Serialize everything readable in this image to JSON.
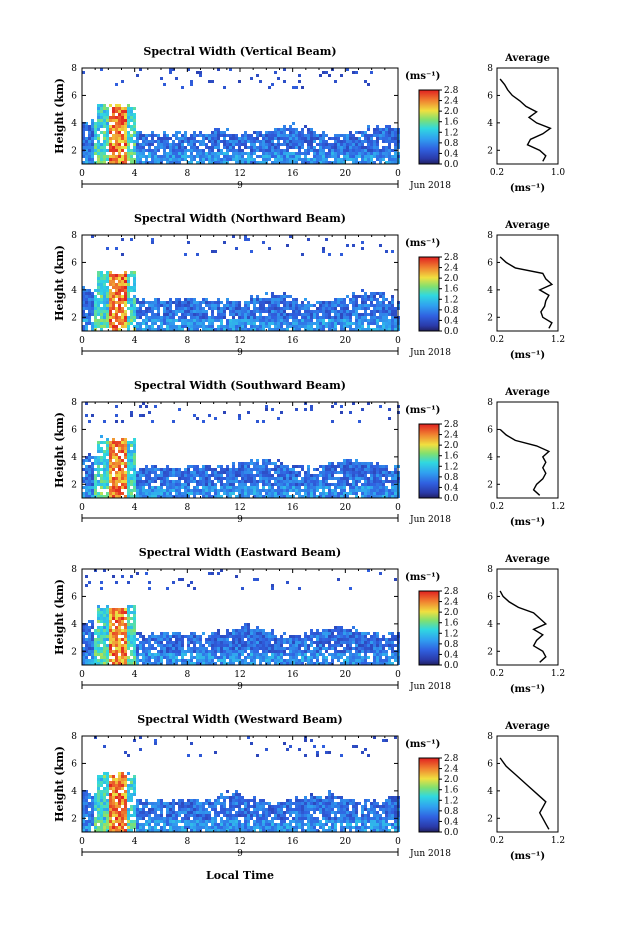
{
  "figure": {
    "xlabel": "Local Time",
    "date_label": "Jun 2018",
    "day_label": "9",
    "unit_label": "(ms⁻¹)",
    "avg_title": "Average"
  },
  "chart_data": [
    {
      "type": "heatmap",
      "title": "Spectral Width (Vertical Beam)",
      "ylabel": "Height (km)",
      "xlabel": "Local Time",
      "x_ticks": [
        "0",
        "4",
        "8",
        "12",
        "16",
        "20",
        "0"
      ],
      "y_ticks": [
        "2",
        "4",
        "6",
        "8"
      ],
      "xlim": [
        0,
        24
      ],
      "ylim": [
        1,
        8
      ],
      "colorbar": {
        "label": "(ms⁻¹)",
        "ticks": [
          "0.0",
          "0.4",
          "0.8",
          "1.2",
          "1.6",
          "2.0",
          "2.4",
          "2.8"
        ],
        "range": [
          0,
          2.8
        ]
      },
      "average_profile": {
        "title": "Average",
        "xlabel": "(ms⁻¹)",
        "x_ticks": [
          "0.2",
          "1.0"
        ],
        "xlim": [
          0.2,
          1.0
        ],
        "y_ticks": [
          "2",
          "4",
          "6",
          "8"
        ],
        "ylim": [
          1,
          8
        ],
        "x": [
          0.8,
          0.84,
          0.76,
          0.6,
          0.64,
          0.8,
          0.9,
          0.72,
          0.62,
          0.72,
          0.58,
          0.5,
          0.4,
          0.34,
          0.3,
          0.24
        ],
        "y": [
          1.2,
          1.6,
          2.0,
          2.4,
          2.8,
          3.2,
          3.6,
          4.0,
          4.4,
          4.8,
          5.2,
          5.6,
          6.0,
          6.4,
          6.8,
          7.2
        ]
      }
    },
    {
      "type": "heatmap",
      "title": "Spectral Width (Northward Beam)",
      "ylabel": "Height (km)",
      "x_ticks": [
        "0",
        "4",
        "8",
        "12",
        "16",
        "20",
        "0"
      ],
      "y_ticks": [
        "2",
        "4",
        "6",
        "8"
      ],
      "xlim": [
        0,
        24
      ],
      "ylim": [
        1,
        8
      ],
      "colorbar": {
        "label": "(ms⁻¹)",
        "ticks": [
          "0.0",
          "0.4",
          "0.8",
          "1.2",
          "1.6",
          "2.0",
          "2.4",
          "2.8"
        ],
        "range": [
          0,
          2.8
        ]
      },
      "average_profile": {
        "title": "Average",
        "xlabel": "(ms⁻¹)",
        "x_ticks": [
          "0.2",
          "1.2"
        ],
        "xlim": [
          0.2,
          1.2
        ],
        "y_ticks": [
          "2",
          "4",
          "6",
          "8"
        ],
        "ylim": [
          1,
          8
        ],
        "x": [
          1.05,
          1.1,
          0.95,
          0.92,
          0.98,
          1.0,
          1.05,
          0.9,
          1.1,
          1.0,
          0.95,
          0.5,
          0.35,
          0.25
        ],
        "y": [
          1.2,
          1.6,
          2.0,
          2.4,
          2.8,
          3.2,
          3.6,
          4.0,
          4.4,
          4.8,
          5.2,
          5.6,
          6.0,
          6.4
        ]
      }
    },
    {
      "type": "heatmap",
      "title": "Spectral Width (Southward Beam)",
      "ylabel": "Height (km)",
      "x_ticks": [
        "0",
        "4",
        "8",
        "12",
        "16",
        "20",
        "0"
      ],
      "y_ticks": [
        "2",
        "4",
        "6",
        "8"
      ],
      "xlim": [
        0,
        24
      ],
      "ylim": [
        1,
        8
      ],
      "colorbar": {
        "label": "(ms⁻¹)",
        "ticks": [
          "0.0",
          "0.4",
          "0.8",
          "1.2",
          "1.6",
          "2.0",
          "2.4",
          "2.8"
        ],
        "range": [
          0,
          2.8
        ]
      },
      "average_profile": {
        "title": "Average",
        "xlabel": "(ms⁻¹)",
        "x_ticks": [
          "0.2",
          "1.2"
        ],
        "xlim": [
          0.2,
          1.2
        ],
        "y_ticks": [
          "2",
          "4",
          "6",
          "8"
        ],
        "ylim": [
          1,
          8
        ],
        "x": [
          0.9,
          0.8,
          0.85,
          0.95,
          1.0,
          0.95,
          1.0,
          0.95,
          1.05,
          0.85,
          0.5,
          0.35,
          0.25
        ],
        "y": [
          1.2,
          1.6,
          2.0,
          2.4,
          2.8,
          3.2,
          3.6,
          4.0,
          4.4,
          4.8,
          5.2,
          5.6,
          6.0
        ]
      }
    },
    {
      "type": "heatmap",
      "title": "Spectral Width (Eastward Beam)",
      "ylabel": "Height (km)",
      "x_ticks": [
        "0",
        "4",
        "8",
        "12",
        "16",
        "20",
        "0"
      ],
      "y_ticks": [
        "2",
        "4",
        "6",
        "8"
      ],
      "xlim": [
        0,
        24
      ],
      "ylim": [
        1,
        8
      ],
      "colorbar": {
        "label": "(ms⁻¹)",
        "ticks": [
          "0.0",
          "0.4",
          "0.8",
          "1.2",
          "1.6",
          "2.0",
          "2.4",
          "2.8"
        ],
        "range": [
          0,
          2.8
        ]
      },
      "average_profile": {
        "title": "Average",
        "xlabel": "(ms⁻¹)",
        "x_ticks": [
          "0.2",
          "1.2"
        ],
        "xlim": [
          0.2,
          1.2
        ],
        "y_ticks": [
          "2",
          "4",
          "6",
          "8"
        ],
        "ylim": [
          1,
          8
        ],
        "x": [
          0.9,
          1.0,
          0.95,
          0.8,
          0.85,
          0.95,
          0.8,
          1.0,
          0.9,
          0.8,
          0.55,
          0.4,
          0.3,
          0.25
        ],
        "y": [
          1.2,
          1.6,
          2.0,
          2.4,
          2.8,
          3.2,
          3.6,
          4.0,
          4.4,
          4.8,
          5.2,
          5.6,
          6.0,
          6.4
        ]
      }
    },
    {
      "type": "heatmap",
      "title": "Spectral Width (Westward Beam)",
      "ylabel": "Height (km)",
      "xlabel": "Local Time",
      "x_ticks": [
        "0",
        "4",
        "8",
        "12",
        "16",
        "20",
        "0"
      ],
      "y_ticks": [
        "2",
        "4",
        "6",
        "8"
      ],
      "xlim": [
        0,
        24
      ],
      "ylim": [
        1,
        8
      ],
      "colorbar": {
        "label": "(ms⁻¹)",
        "ticks": [
          "0.0",
          "0.4",
          "0.8",
          "1.2",
          "1.6",
          "2.0",
          "2.4",
          "2.8"
        ],
        "range": [
          0,
          2.8
        ]
      },
      "average_profile": {
        "title": "Average",
        "xlabel": "(ms⁻¹)",
        "x_ticks": [
          "0.2",
          "1.2"
        ],
        "xlim": [
          0.2,
          1.2
        ],
        "y_ticks": [
          "2",
          "4",
          "6",
          "8"
        ],
        "ylim": [
          1,
          8
        ],
        "x": [
          1.05,
          1.0,
          0.95,
          0.9,
          0.95,
          1.0,
          0.9,
          0.7,
          0.5,
          0.35,
          0.25
        ],
        "y": [
          1.2,
          1.6,
          2.0,
          2.4,
          2.8,
          3.2,
          3.6,
          4.4,
          5.2,
          5.8,
          6.4
        ]
      }
    }
  ]
}
